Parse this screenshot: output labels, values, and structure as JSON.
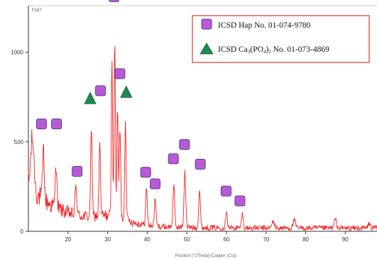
{
  "chart_data": {
    "type": "line",
    "corner_label": "F187",
    "xlabel": "Position [°2Theta] (Copper (Cu))",
    "xlim": [
      10,
      98
    ],
    "ylim": [
      0,
      1260
    ],
    "x_ticks": [
      20,
      30,
      40,
      50,
      60,
      70,
      80,
      90
    ],
    "y_ticks": [
      0,
      500,
      1000
    ],
    "y_tick_labels": [
      "0",
      "500",
      "1000"
    ],
    "series": [
      {
        "color": "#f22222",
        "peaks": [
          {
            "x": 11.0,
            "y": 290,
            "w": 0.6
          },
          {
            "x": 13.8,
            "y": 280,
            "w": 0.3
          },
          {
            "x": 17.0,
            "y": 250,
            "w": 0.3
          },
          {
            "x": 22.0,
            "y": 160,
            "w": 0.3
          },
          {
            "x": 25.9,
            "y": 520,
            "w": 0.25
          },
          {
            "x": 28.0,
            "y": 410,
            "w": 0.25
          },
          {
            "x": 31.1,
            "y": 900,
            "w": 0.22
          },
          {
            "x": 31.8,
            "y": 1000,
            "w": 0.22
          },
          {
            "x": 32.5,
            "y": 620,
            "w": 0.22
          },
          {
            "x": 33.1,
            "y": 500,
            "w": 0.25
          },
          {
            "x": 34.5,
            "y": 560,
            "w": 0.25
          },
          {
            "x": 39.8,
            "y": 200,
            "w": 0.3
          },
          {
            "x": 42.0,
            "y": 150,
            "w": 0.3
          },
          {
            "x": 46.7,
            "y": 230,
            "w": 0.3
          },
          {
            "x": 49.5,
            "y": 320,
            "w": 0.3
          },
          {
            "x": 53.2,
            "y": 210,
            "w": 0.3
          },
          {
            "x": 60.0,
            "y": 100,
            "w": 0.3
          },
          {
            "x": 64.0,
            "y": 80,
            "w": 0.3
          },
          {
            "x": 71.8,
            "y": 40,
            "w": 0.4
          },
          {
            "x": 77.1,
            "y": 45,
            "w": 0.4
          },
          {
            "x": 87.5,
            "y": 50,
            "w": 0.4
          },
          {
            "x": 96.0,
            "y": 25,
            "w": 0.4
          }
        ]
      }
    ],
    "markers": {
      "hap": {
        "color": "#b85ad6",
        "points": [
          {
            "x": 13.3,
            "y": 600
          },
          {
            "x": 17.1,
            "y": 600
          },
          {
            "x": 22.3,
            "y": 335
          },
          {
            "x": 28.2,
            "y": 785
          },
          {
            "x": 31.6,
            "y": 1310
          },
          {
            "x": 33.1,
            "y": 880
          },
          {
            "x": 39.6,
            "y": 330
          },
          {
            "x": 42.0,
            "y": 265
          },
          {
            "x": 46.6,
            "y": 405
          },
          {
            "x": 49.4,
            "y": 485
          },
          {
            "x": 53.4,
            "y": 375
          },
          {
            "x": 59.9,
            "y": 225
          },
          {
            "x": 63.4,
            "y": 170
          }
        ]
      },
      "tcp": {
        "color": "#1e8a4f",
        "points": [
          {
            "x": 25.6,
            "y": 740
          },
          {
            "x": 34.7,
            "y": 775
          }
        ]
      }
    },
    "legend": {
      "placement": "top-right",
      "border_color": "#d43b3b",
      "items": [
        {
          "label": "ICSD Hap No. 01-074-9780",
          "marker": "hap"
        },
        {
          "label_pre": "ICSD Ca",
          "label_sub1": "3",
          "label_mid": "(PO",
          "label_sub2": "4",
          "label_post": ")",
          "label_sub3": "2",
          "label_end": " No. 01-073-4869",
          "marker": "tcp"
        }
      ]
    }
  }
}
